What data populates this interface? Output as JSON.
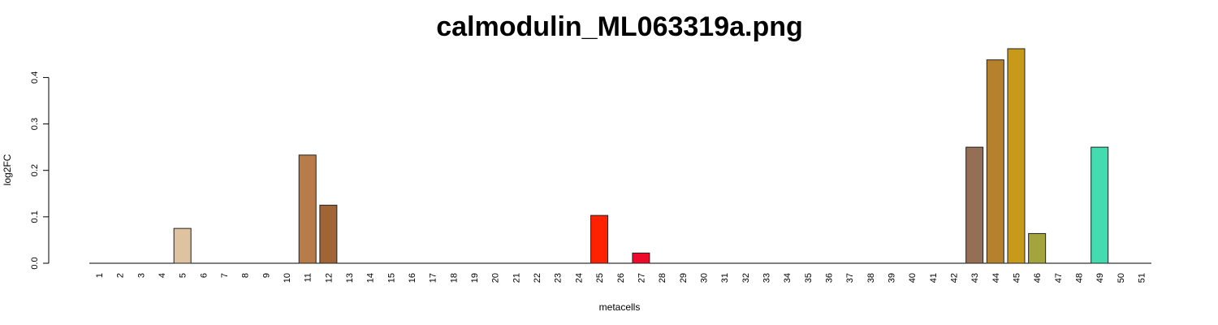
{
  "chart_data": {
    "type": "bar",
    "title": "calmodulin_ML063319a.png",
    "xlabel": "metacells",
    "ylabel": "log2FC",
    "ylim": [
      0,
      0.46
    ],
    "yticks": [
      "0.0",
      "0.1",
      "0.2",
      "0.3",
      "0.4"
    ],
    "ytick_values": [
      0,
      0.1,
      0.2,
      0.3,
      0.4
    ],
    "grid": false,
    "legend": "none",
    "categories": [
      "1",
      "2",
      "3",
      "4",
      "5",
      "6",
      "7",
      "8",
      "9",
      "10",
      "11",
      "12",
      "13",
      "14",
      "15",
      "16",
      "17",
      "18",
      "19",
      "20",
      "21",
      "22",
      "23",
      "24",
      "25",
      "26",
      "27",
      "28",
      "29",
      "30",
      "31",
      "32",
      "33",
      "34",
      "35",
      "36",
      "37",
      "38",
      "39",
      "40",
      "41",
      "42",
      "43",
      "44",
      "45",
      "46",
      "47",
      "48",
      "49",
      "50",
      "51"
    ],
    "values": [
      0,
      0,
      0,
      0,
      0.075,
      0,
      0,
      0,
      0,
      0,
      0.233,
      0.125,
      0,
      0,
      0,
      0,
      0,
      0,
      0,
      0,
      0,
      0,
      0,
      0,
      0.103,
      0,
      0.022,
      0,
      0,
      0,
      0,
      0,
      0,
      0,
      0,
      0,
      0,
      0,
      0,
      0,
      0,
      0,
      0.25,
      0.438,
      0.462,
      0.064,
      0,
      0,
      0.25,
      0,
      0
    ],
    "colors": [
      "#8a8a8a",
      "#8a8a8a",
      "#8a8a8a",
      "#8a8a8a",
      "#dfc3a0",
      "#8a8a8a",
      "#8a8a8a",
      "#8a8a8a",
      "#8a8a8a",
      "#8a8a8a",
      "#b87b4a",
      "#a16434",
      "#8a8a8a",
      "#8a8a8a",
      "#8a8a8a",
      "#8a8a8a",
      "#8a8a8a",
      "#8a8a8a",
      "#8a8a8a",
      "#8a8a8a",
      "#8a8a8a",
      "#8a8a8a",
      "#8a8a8a",
      "#8a8a8a",
      "#ff2200",
      "#8a8a8a",
      "#ee0a2a",
      "#8a8a8a",
      "#8a8a8a",
      "#8a8a8a",
      "#8a8a8a",
      "#8a8a8a",
      "#8a8a8a",
      "#8a8a8a",
      "#8a8a8a",
      "#8a8a8a",
      "#8a8a8a",
      "#8a8a8a",
      "#8a8a8a",
      "#8a8a8a",
      "#8a8a8a",
      "#8a8a8a",
      "#946e55",
      "#b5812c",
      "#c79a1a",
      "#a3a53c",
      "#8a8a8a",
      "#8a8a8a",
      "#43dcb0",
      "#8a8a8a",
      "#8a8a8a"
    ]
  }
}
